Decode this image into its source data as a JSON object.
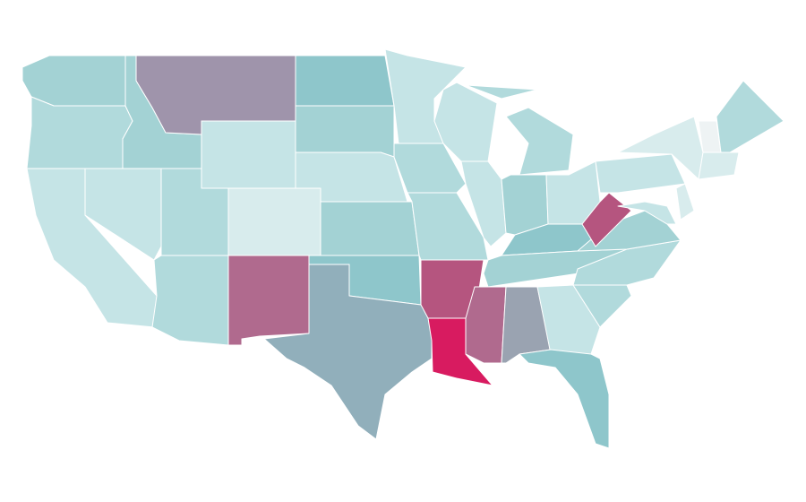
{
  "map": {
    "background": "#ffffff",
    "border": "#ffffff",
    "fills": [
      "#d81b60",
      "#b5557f",
      "#b06a8e",
      "#9f94ab",
      "#91afbb",
      "#9aa3b1",
      "#8ec6cb",
      "#a3d2d4",
      "#b1dadc",
      "#c5e4e6",
      "#d8eced",
      "#eef3f4"
    ]
  }
}
